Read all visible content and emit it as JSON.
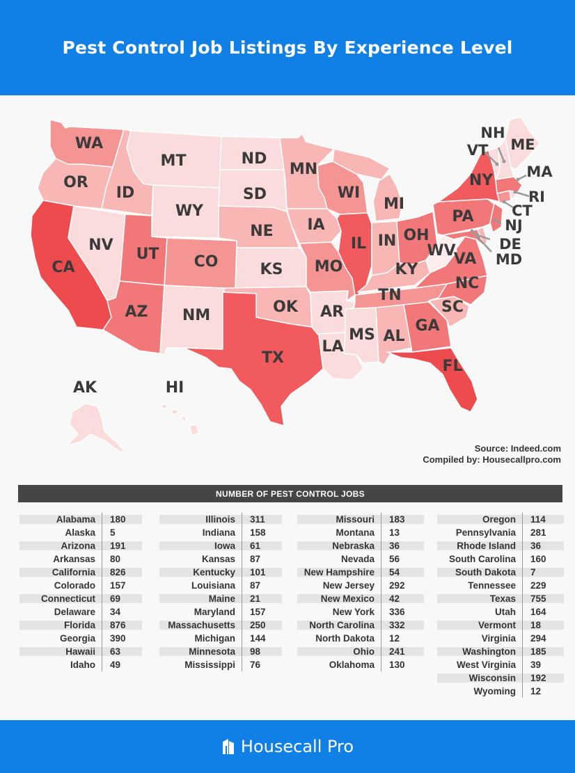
{
  "title": "Pest Control Job Listings By Experience Level",
  "source_line": "Source: Indeed.com",
  "compiled_line": "Compiled by: Housecallpro.com",
  "table_header": "NUMBER OF PEST CONTROL JOBS",
  "footer_brand": "Housecall Pro",
  "colors": {
    "header_bg": "#1080e6",
    "low": "#fbdcdc",
    "mid_low": "#f8b7b5",
    "mid": "#f49493",
    "mid_high": "#f27778",
    "high": "#f15b5e",
    "highest": "#ee4b4f"
  },
  "map_labels": {
    "WA": "WA",
    "OR": "OR",
    "CA": "CA",
    "ID": "ID",
    "NV": "NV",
    "MT": "MT",
    "WY": "WY",
    "UT": "UT",
    "AZ": "AZ",
    "CO": "CO",
    "NM": "NM",
    "ND": "ND",
    "SD": "SD",
    "NE": "NE",
    "KS": "KS",
    "OK": "OK",
    "TX": "TX",
    "MN": "MN",
    "IA": "IA",
    "MO": "MO",
    "AR": "AR",
    "LA": "LA",
    "WI": "WI",
    "IL": "IL",
    "MS": "MS",
    "MI": "MI",
    "IN": "IN",
    "KY": "KY",
    "TN": "TN",
    "AL": "AL",
    "OH": "OH",
    "GA": "GA",
    "FL": "FL",
    "SC": "SC",
    "NC": "NC",
    "VA": "VA",
    "WV": "WV",
    "PA": "PA",
    "NY": "NY",
    "VT": "VT",
    "NH": "NH",
    "ME": "ME",
    "MA": "MA",
    "RI": "RI",
    "CT": "CT",
    "NJ": "NJ",
    "DE": "DE",
    "MD": "MD",
    "AK": "AK",
    "HI": "HI"
  },
  "columns": [
    [
      {
        "state": "Alabama",
        "value": "180"
      },
      {
        "state": "Alaska",
        "value": "5"
      },
      {
        "state": "Arizona",
        "value": "191"
      },
      {
        "state": "Arkansas",
        "value": "80"
      },
      {
        "state": "California",
        "value": "826"
      },
      {
        "state": "Colorado",
        "value": "157"
      },
      {
        "state": "Connecticut",
        "value": "69"
      },
      {
        "state": "Delaware",
        "value": "34"
      },
      {
        "state": "Florida",
        "value": "876"
      },
      {
        "state": "Georgia",
        "value": "390"
      },
      {
        "state": "Hawaii",
        "value": "63"
      },
      {
        "state": "Idaho",
        "value": "49"
      }
    ],
    [
      {
        "state": "Illinois",
        "value": "311"
      },
      {
        "state": "Indiana",
        "value": "158"
      },
      {
        "state": "Iowa",
        "value": "61"
      },
      {
        "state": "Kansas",
        "value": "87"
      },
      {
        "state": "Kentucky",
        "value": "101"
      },
      {
        "state": "Louisiana",
        "value": "87"
      },
      {
        "state": "Maine",
        "value": "21"
      },
      {
        "state": "Maryland",
        "value": "157"
      },
      {
        "state": "Massachusetts",
        "value": "250"
      },
      {
        "state": "Michigan",
        "value": "144"
      },
      {
        "state": "Minnesota",
        "value": "98"
      },
      {
        "state": "Mississippi",
        "value": "76"
      }
    ],
    [
      {
        "state": "Missouri",
        "value": "183"
      },
      {
        "state": "Montana",
        "value": "13"
      },
      {
        "state": "Nebraska",
        "value": "36"
      },
      {
        "state": "Nevada",
        "value": "56"
      },
      {
        "state": "New Hampshire",
        "value": "54"
      },
      {
        "state": "New Jersey",
        "value": "292"
      },
      {
        "state": "New Mexico",
        "value": "42"
      },
      {
        "state": "New York",
        "value": "336"
      },
      {
        "state": "North Carolina",
        "value": "332"
      },
      {
        "state": "North Dakota",
        "value": "12"
      },
      {
        "state": "Ohio",
        "value": "241"
      },
      {
        "state": "Oklahoma",
        "value": "130"
      }
    ],
    [
      {
        "state": "Oregon",
        "value": "114"
      },
      {
        "state": "Pennsylvania",
        "value": "281"
      },
      {
        "state": "Rhode Island",
        "value": "36"
      },
      {
        "state": "South Carolina",
        "value": "160"
      },
      {
        "state": "South Dakota",
        "value": "7"
      },
      {
        "state": "Tennessee",
        "value": "229"
      },
      {
        "state": "Texas",
        "value": "755"
      },
      {
        "state": "Utah",
        "value": "164"
      },
      {
        "state": "Vermont",
        "value": "18"
      },
      {
        "state": "Virginia",
        "value": "294"
      },
      {
        "state": "Washington",
        "value": "185"
      },
      {
        "state": "West Virginia",
        "value": "39"
      },
      {
        "state": "Wisconsin",
        "value": "192"
      },
      {
        "state": "Wyoming",
        "value": "12"
      }
    ]
  ]
}
